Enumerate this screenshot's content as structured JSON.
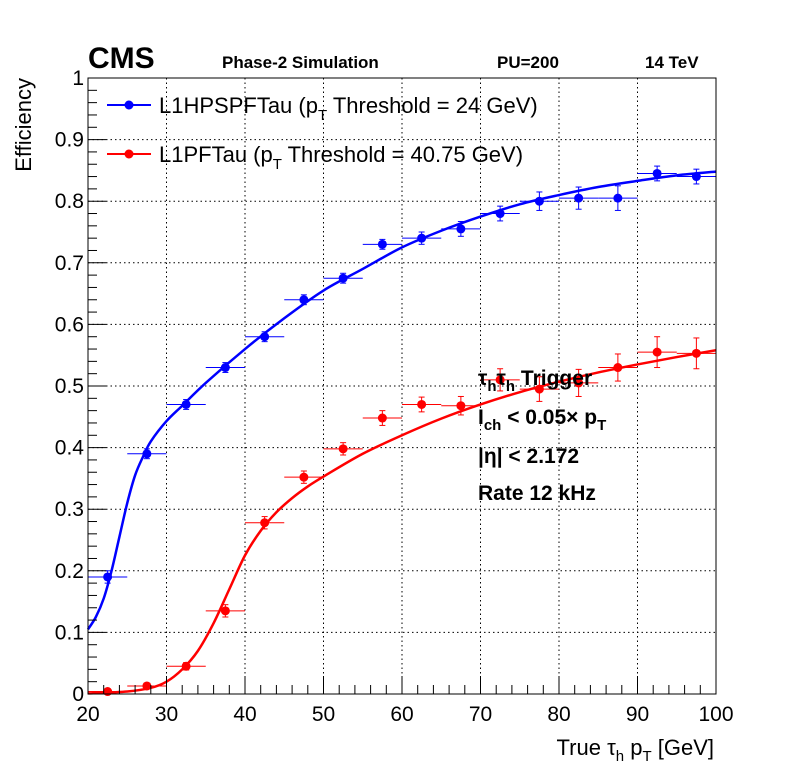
{
  "header": {
    "experiment": "CMS",
    "simulation": "Phase-2 Simulation",
    "pileup": "PU=200",
    "energy": "14 TeV"
  },
  "legend": [
    {
      "prefix": "L1HPSPFTau (p",
      "sub": "T",
      "suffix": " Threshold = 24 GeV)"
    },
    {
      "prefix": "L1PFTau (p",
      "sub": "T",
      "suffix": " Threshold = 40.75 GeV)"
    }
  ],
  "annotations": {
    "trigger": {
      "base": "τ",
      "sub": "h",
      "base2": "τ",
      "sub2": "h",
      "tail": " Trigger"
    },
    "isolation": {
      "base": "I",
      "sub": "ch",
      "mid": " < 0.05× p",
      "sub2": "T"
    },
    "eta": "|η| < 2.172",
    "rate": "Rate 12 kHz"
  },
  "colors": {
    "blue": "#0000ff",
    "red": "#ff0000",
    "grid": "#000000"
  },
  "chart_data": {
    "type": "scatter",
    "xlabel": {
      "prefix": "True  τ",
      "sub": "h",
      "mid": " p",
      "sub2": "T",
      "suffix": " [GeV]"
    },
    "ylabel": "Efficiency",
    "xlim": [
      20,
      100
    ],
    "ylim": [
      0,
      1
    ],
    "xticks": [
      20,
      30,
      40,
      50,
      60,
      70,
      80,
      90,
      100
    ],
    "yticks": [
      0,
      0.1,
      0.2,
      0.3,
      0.4,
      0.5,
      0.6,
      0.7,
      0.8,
      0.9,
      1
    ],
    "ytick_labels": [
      "0",
      "0.1",
      "0.2",
      "0.3",
      "0.4",
      "0.5",
      "0.6",
      "0.7",
      "0.8",
      "0.9",
      "1"
    ],
    "grid": true,
    "legend_position": "top-left",
    "series": [
      {
        "name": "L1HPSPFTau (pT Threshold = 24 GeV)",
        "color": "#0000ff",
        "x": [
          22.5,
          27.5,
          32.5,
          37.5,
          42.5,
          47.5,
          52.5,
          57.5,
          62.5,
          67.5,
          72.5,
          77.5,
          82.5,
          87.5,
          92.5,
          97.5
        ],
        "y": [
          0.19,
          0.39,
          0.47,
          0.53,
          0.58,
          0.64,
          0.675,
          0.73,
          0.74,
          0.755,
          0.78,
          0.8,
          0.805,
          0.805,
          0.845,
          0.84
        ],
        "x_err": 2.5,
        "y_err": [
          0.01,
          0.008,
          0.008,
          0.008,
          0.008,
          0.008,
          0.008,
          0.008,
          0.01,
          0.012,
          0.012,
          0.015,
          0.018,
          0.02,
          0.012,
          0.012
        ],
        "fit_x": [
          20,
          21,
          22,
          23,
          24,
          25,
          26,
          27,
          28,
          30,
          32,
          35,
          40,
          45,
          50,
          55,
          60,
          65,
          70,
          75,
          80,
          85,
          90,
          95,
          100
        ],
        "fit_y": [
          0.105,
          0.125,
          0.155,
          0.2,
          0.255,
          0.31,
          0.355,
          0.385,
          0.41,
          0.443,
          0.468,
          0.505,
          0.56,
          0.61,
          0.655,
          0.69,
          0.725,
          0.752,
          0.775,
          0.795,
          0.81,
          0.823,
          0.833,
          0.842,
          0.848
        ]
      },
      {
        "name": "L1PFTau (pT Threshold = 40.75 GeV)",
        "color": "#ff0000",
        "x": [
          22.5,
          27.5,
          32.5,
          37.5,
          42.5,
          47.5,
          52.5,
          57.5,
          62.5,
          67.5,
          72.5,
          77.5,
          82.5,
          87.5,
          92.5,
          97.5
        ],
        "y": [
          0.004,
          0.013,
          0.045,
          0.135,
          0.278,
          0.352,
          0.398,
          0.448,
          0.47,
          0.468,
          0.51,
          0.495,
          0.505,
          0.53,
          0.555,
          0.553
        ],
        "x_err": 2.5,
        "y_err": [
          0.003,
          0.004,
          0.006,
          0.01,
          0.01,
          0.01,
          0.01,
          0.012,
          0.012,
          0.015,
          0.018,
          0.02,
          0.022,
          0.022,
          0.025,
          0.025
        ],
        "fit_x": [
          20,
          25,
          28,
          30,
          32,
          34,
          36,
          38,
          40,
          42,
          44,
          46,
          48,
          50,
          55,
          60,
          65,
          70,
          75,
          80,
          85,
          90,
          95,
          100
        ],
        "fit_y": [
          0.001,
          0.004,
          0.01,
          0.02,
          0.04,
          0.07,
          0.115,
          0.17,
          0.225,
          0.265,
          0.295,
          0.318,
          0.337,
          0.353,
          0.39,
          0.42,
          0.447,
          0.47,
          0.49,
          0.507,
          0.522,
          0.535,
          0.547,
          0.558
        ]
      }
    ]
  }
}
